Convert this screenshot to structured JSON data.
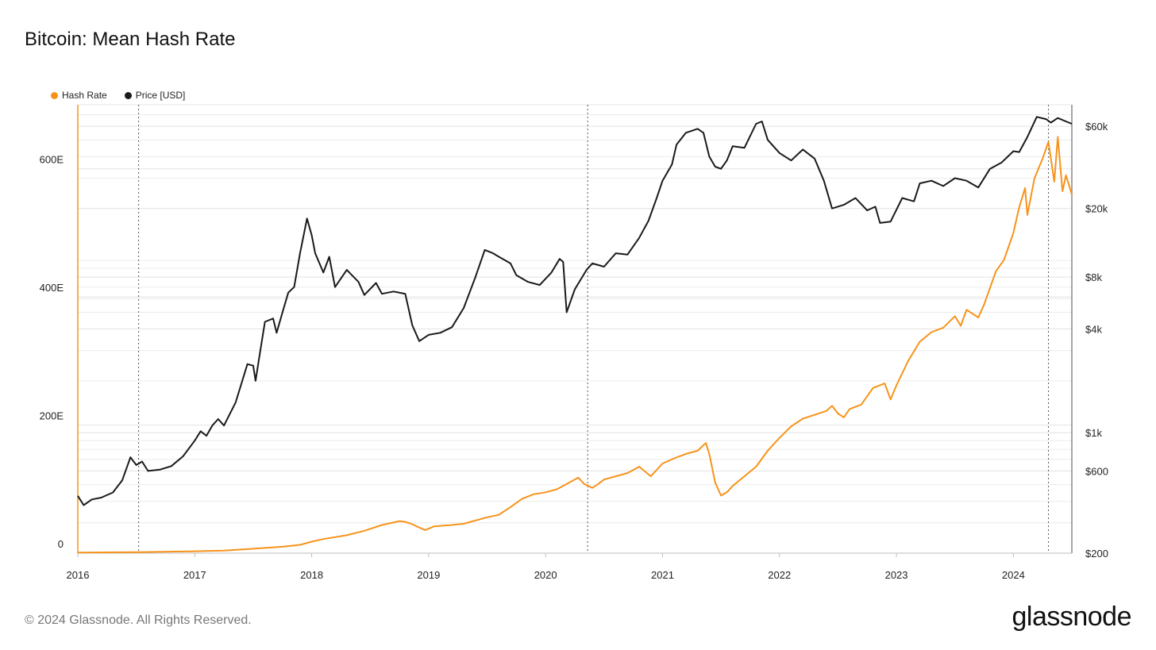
{
  "title": "Bitcoin: Mean Hash Rate",
  "footer": {
    "copyright": "© 2024 Glassnode. All Rights Reserved.",
    "logo": "glassnode"
  },
  "colors": {
    "hash": "#F7931A",
    "price": "#1a1a1a",
    "grid": "#ececec",
    "halving": "#555555"
  },
  "chart_data": {
    "type": "line",
    "title": "Bitcoin: Mean Hash Rate",
    "legend": [
      {
        "name": "Hash Rate",
        "color": "#F7931A"
      },
      {
        "name": "Price [USD]",
        "color": "#1a1a1a"
      }
    ],
    "x_range": [
      2016.0,
      2024.5
    ],
    "x_ticks": [
      {
        "v": 2016,
        "label": "2016"
      },
      {
        "v": 2017,
        "label": "2017"
      },
      {
        "v": 2018,
        "label": "2018"
      },
      {
        "v": 2019,
        "label": "2019"
      },
      {
        "v": 2020,
        "label": "2020"
      },
      {
        "v": 2021,
        "label": "2021"
      },
      {
        "v": 2022,
        "label": "2022"
      },
      {
        "v": 2023,
        "label": "2023"
      },
      {
        "v": 2024,
        "label": "2024"
      }
    ],
    "y_left": {
      "range": [
        0,
        700
      ],
      "unit": "EH/s",
      "ticks": [
        {
          "v": 0,
          "label": "0"
        },
        {
          "v": 200,
          "label": "200E"
        },
        {
          "v": 400,
          "label": "400E"
        },
        {
          "v": 600,
          "label": "600E"
        }
      ]
    },
    "y_right": {
      "scale": "log",
      "range": [
        200,
        80000
      ],
      "ticks": [
        {
          "v": 200,
          "label": "$200"
        },
        {
          "v": 600,
          "label": "$600"
        },
        {
          "v": 1000,
          "label": "$1k"
        },
        {
          "v": 4000,
          "label": "$4k"
        },
        {
          "v": 8000,
          "label": "$8k"
        },
        {
          "v": 20000,
          "label": "$20k"
        },
        {
          "v": 60000,
          "label": "$60k"
        }
      ]
    },
    "halvings": [
      2016.52,
      2020.36,
      2024.3
    ],
    "series": [
      {
        "name": "Hash Rate",
        "axis": "left",
        "color": "#F7931A",
        "points": [
          [
            2016.0,
            1
          ],
          [
            2016.5,
            1.5
          ],
          [
            2017.0,
            3
          ],
          [
            2017.25,
            4
          ],
          [
            2017.5,
            7
          ],
          [
            2017.75,
            10
          ],
          [
            2017.9,
            13
          ],
          [
            2018.0,
            18
          ],
          [
            2018.1,
            22
          ],
          [
            2018.3,
            28
          ],
          [
            2018.45,
            35
          ],
          [
            2018.6,
            44
          ],
          [
            2018.75,
            50
          ],
          [
            2018.8,
            49
          ],
          [
            2018.85,
            46
          ],
          [
            2018.92,
            40
          ],
          [
            2018.97,
            36
          ],
          [
            2019.05,
            42
          ],
          [
            2019.2,
            44
          ],
          [
            2019.3,
            46
          ],
          [
            2019.5,
            56
          ],
          [
            2019.6,
            60
          ],
          [
            2019.7,
            72
          ],
          [
            2019.8,
            85
          ],
          [
            2019.9,
            92
          ],
          [
            2020.0,
            95
          ],
          [
            2020.1,
            100
          ],
          [
            2020.2,
            110
          ],
          [
            2020.28,
            118
          ],
          [
            2020.33,
            108
          ],
          [
            2020.4,
            102
          ],
          [
            2020.45,
            108
          ],
          [
            2020.5,
            115
          ],
          [
            2020.6,
            120
          ],
          [
            2020.7,
            125
          ],
          [
            2020.8,
            135
          ],
          [
            2020.9,
            120
          ],
          [
            2021.0,
            140
          ],
          [
            2021.1,
            148
          ],
          [
            2021.2,
            155
          ],
          [
            2021.3,
            160
          ],
          [
            2021.37,
            172
          ],
          [
            2021.4,
            155
          ],
          [
            2021.45,
            110
          ],
          [
            2021.5,
            90
          ],
          [
            2021.55,
            95
          ],
          [
            2021.6,
            105
          ],
          [
            2021.7,
            120
          ],
          [
            2021.8,
            135
          ],
          [
            2021.9,
            160
          ],
          [
            2022.0,
            180
          ],
          [
            2022.1,
            198
          ],
          [
            2022.2,
            210
          ],
          [
            2022.3,
            216
          ],
          [
            2022.4,
            222
          ],
          [
            2022.45,
            230
          ],
          [
            2022.5,
            218
          ],
          [
            2022.55,
            212
          ],
          [
            2022.6,
            225
          ],
          [
            2022.7,
            232
          ],
          [
            2022.8,
            258
          ],
          [
            2022.9,
            265
          ],
          [
            2022.95,
            240
          ],
          [
            2023.0,
            262
          ],
          [
            2023.1,
            300
          ],
          [
            2023.2,
            330
          ],
          [
            2023.3,
            345
          ],
          [
            2023.4,
            352
          ],
          [
            2023.5,
            370
          ],
          [
            2023.55,
            355
          ],
          [
            2023.6,
            380
          ],
          [
            2023.7,
            368
          ],
          [
            2023.75,
            388
          ],
          [
            2023.85,
            440
          ],
          [
            2023.92,
            458
          ],
          [
            2024.0,
            500
          ],
          [
            2024.05,
            540
          ],
          [
            2024.1,
            570
          ],
          [
            2024.12,
            528
          ],
          [
            2024.18,
            585
          ],
          [
            2024.25,
            616
          ],
          [
            2024.3,
            642
          ],
          [
            2024.35,
            580
          ],
          [
            2024.38,
            650
          ],
          [
            2024.42,
            565
          ],
          [
            2024.45,
            590
          ],
          [
            2024.5,
            560
          ]
        ]
      },
      {
        "name": "Price [USD]",
        "axis": "right",
        "color": "#1a1a1a",
        "points": [
          [
            2016.0,
            430
          ],
          [
            2016.05,
            380
          ],
          [
            2016.12,
            410
          ],
          [
            2016.2,
            420
          ],
          [
            2016.3,
            450
          ],
          [
            2016.38,
            530
          ],
          [
            2016.45,
            720
          ],
          [
            2016.5,
            650
          ],
          [
            2016.55,
            680
          ],
          [
            2016.6,
            600
          ],
          [
            2016.7,
            610
          ],
          [
            2016.8,
            640
          ],
          [
            2016.9,
            730
          ],
          [
            2017.0,
            900
          ],
          [
            2017.05,
            1020
          ],
          [
            2017.1,
            960
          ],
          [
            2017.15,
            1100
          ],
          [
            2017.2,
            1200
          ],
          [
            2017.25,
            1100
          ],
          [
            2017.35,
            1500
          ],
          [
            2017.45,
            2500
          ],
          [
            2017.5,
            2450
          ],
          [
            2017.52,
            2000
          ],
          [
            2017.55,
            2700
          ],
          [
            2017.6,
            4400
          ],
          [
            2017.67,
            4600
          ],
          [
            2017.7,
            3800
          ],
          [
            2017.75,
            5000
          ],
          [
            2017.8,
            6500
          ],
          [
            2017.85,
            7000
          ],
          [
            2017.9,
            11000
          ],
          [
            2017.96,
            17500
          ],
          [
            2018.0,
            14000
          ],
          [
            2018.03,
            11000
          ],
          [
            2018.1,
            8500
          ],
          [
            2018.15,
            10500
          ],
          [
            2018.2,
            7000
          ],
          [
            2018.3,
            8800
          ],
          [
            2018.4,
            7500
          ],
          [
            2018.45,
            6300
          ],
          [
            2018.55,
            7400
          ],
          [
            2018.6,
            6400
          ],
          [
            2018.7,
            6600
          ],
          [
            2018.8,
            6400
          ],
          [
            2018.86,
            4200
          ],
          [
            2018.92,
            3400
          ],
          [
            2019.0,
            3700
          ],
          [
            2019.1,
            3800
          ],
          [
            2019.2,
            4100
          ],
          [
            2019.3,
            5300
          ],
          [
            2019.4,
            8000
          ],
          [
            2019.48,
            11500
          ],
          [
            2019.55,
            11000
          ],
          [
            2019.6,
            10500
          ],
          [
            2019.7,
            9600
          ],
          [
            2019.75,
            8200
          ],
          [
            2019.85,
            7500
          ],
          [
            2019.95,
            7200
          ],
          [
            2020.05,
            8500
          ],
          [
            2020.12,
            10200
          ],
          [
            2020.15,
            9800
          ],
          [
            2020.18,
            5000
          ],
          [
            2020.25,
            6800
          ],
          [
            2020.35,
            8800
          ],
          [
            2020.4,
            9600
          ],
          [
            2020.5,
            9200
          ],
          [
            2020.6,
            11000
          ],
          [
            2020.7,
            10800
          ],
          [
            2020.8,
            13500
          ],
          [
            2020.88,
            17000
          ],
          [
            2020.95,
            23000
          ],
          [
            2021.0,
            29000
          ],
          [
            2021.08,
            36000
          ],
          [
            2021.12,
            47000
          ],
          [
            2021.2,
            55000
          ],
          [
            2021.3,
            58000
          ],
          [
            2021.35,
            55000
          ],
          [
            2021.4,
            40000
          ],
          [
            2021.45,
            35000
          ],
          [
            2021.5,
            34000
          ],
          [
            2021.55,
            38000
          ],
          [
            2021.6,
            46000
          ],
          [
            2021.7,
            45000
          ],
          [
            2021.8,
            62000
          ],
          [
            2021.85,
            64000
          ],
          [
            2021.9,
            50000
          ],
          [
            2022.0,
            42000
          ],
          [
            2022.1,
            38000
          ],
          [
            2022.2,
            44000
          ],
          [
            2022.3,
            39000
          ],
          [
            2022.38,
            29000
          ],
          [
            2022.45,
            20000
          ],
          [
            2022.55,
            21000
          ],
          [
            2022.65,
            23000
          ],
          [
            2022.75,
            19500
          ],
          [
            2022.82,
            20500
          ],
          [
            2022.86,
            16500
          ],
          [
            2022.95,
            16800
          ],
          [
            2023.05,
            23000
          ],
          [
            2023.15,
            22000
          ],
          [
            2023.2,
            28000
          ],
          [
            2023.3,
            29000
          ],
          [
            2023.4,
            27000
          ],
          [
            2023.5,
            30000
          ],
          [
            2023.6,
            29000
          ],
          [
            2023.7,
            26500
          ],
          [
            2023.8,
            34000
          ],
          [
            2023.9,
            37000
          ],
          [
            2024.0,
            43000
          ],
          [
            2024.05,
            42500
          ],
          [
            2024.12,
            52000
          ],
          [
            2024.2,
            68000
          ],
          [
            2024.28,
            66000
          ],
          [
            2024.32,
            63000
          ],
          [
            2024.38,
            67000
          ],
          [
            2024.45,
            64000
          ],
          [
            2024.5,
            62000
          ]
        ]
      }
    ]
  }
}
